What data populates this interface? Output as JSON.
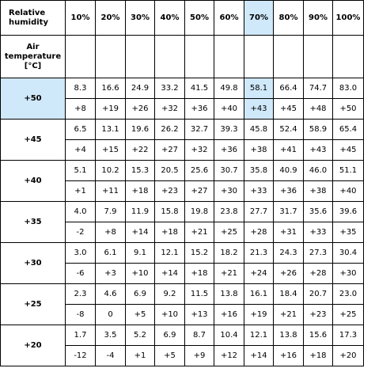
{
  "header": {
    "corner_line1": "Relative",
    "corner_line2": "humidity",
    "air_line1": "Air",
    "air_line2": "temperature",
    "air_line3": "[°C]",
    "columns": [
      "10%",
      "20%",
      "30%",
      "40%",
      "50%",
      "60%",
      "70%",
      "80%",
      "90%",
      "100%"
    ]
  },
  "highlight": {
    "column": "70%",
    "row": "+50",
    "color": "#cfe8fa"
  },
  "rows": [
    {
      "temp": "+50",
      "top": [
        "8.3",
        "16.6",
        "24.9",
        "33.2",
        "41.5",
        "49.8",
        "58.1",
        "66.4",
        "74.7",
        "83.0"
      ],
      "bottom": [
        "+8",
        "+19",
        "+26",
        "+32",
        "+36",
        "+40",
        "+43",
        "+45",
        "+48",
        "+50"
      ]
    },
    {
      "temp": "+45",
      "top": [
        "6.5",
        "13.1",
        "19.6",
        "26.2",
        "32.7",
        "39.3",
        "45.8",
        "52.4",
        "58.9",
        "65.4"
      ],
      "bottom": [
        "+4",
        "+15",
        "+22",
        "+27",
        "+32",
        "+36",
        "+38",
        "+41",
        "+43",
        "+45"
      ]
    },
    {
      "temp": "+40",
      "top": [
        "5.1",
        "10.2",
        "15.3",
        "20.5",
        "25.6",
        "30.7",
        "35.8",
        "40.9",
        "46.0",
        "51.1"
      ],
      "bottom": [
        "+1",
        "+11",
        "+18",
        "+23",
        "+27",
        "+30",
        "+33",
        "+36",
        "+38",
        "+40"
      ]
    },
    {
      "temp": "+35",
      "top": [
        "4.0",
        "7.9",
        "11.9",
        "15.8",
        "19.8",
        "23.8",
        "27.7",
        "31.7",
        "35.6",
        "39.6"
      ],
      "bottom": [
        "-2",
        "+8",
        "+14",
        "+18",
        "+21",
        "+25",
        "+28",
        "+31",
        "+33",
        "+35"
      ]
    },
    {
      "temp": "+30",
      "top": [
        "3.0",
        "6.1",
        "9.1",
        "12.1",
        "15.2",
        "18.2",
        "21.3",
        "24.3",
        "27.3",
        "30.4"
      ],
      "bottom": [
        "-6",
        "+3",
        "+10",
        "+14",
        "+18",
        "+21",
        "+24",
        "+26",
        "+28",
        "+30"
      ]
    },
    {
      "temp": "+25",
      "top": [
        "2.3",
        "4.6",
        "6.9",
        "9.2",
        "11.5",
        "13.8",
        "16.1",
        "18.4",
        "20.7",
        "23.0"
      ],
      "bottom": [
        "-8",
        "0",
        "+5",
        "+10",
        "+13",
        "+16",
        "+19",
        "+21",
        "+23",
        "+25"
      ]
    },
    {
      "temp": "+20",
      "top": [
        "1.7",
        "3.5",
        "5.2",
        "6.9",
        "8.7",
        "10.4",
        "12.1",
        "13.8",
        "15.6",
        "17.3"
      ],
      "bottom": [
        "-12",
        "-4",
        "+1",
        "+5",
        "+9",
        "+12",
        "+14",
        "+16",
        "+18",
        "+20"
      ]
    }
  ]
}
